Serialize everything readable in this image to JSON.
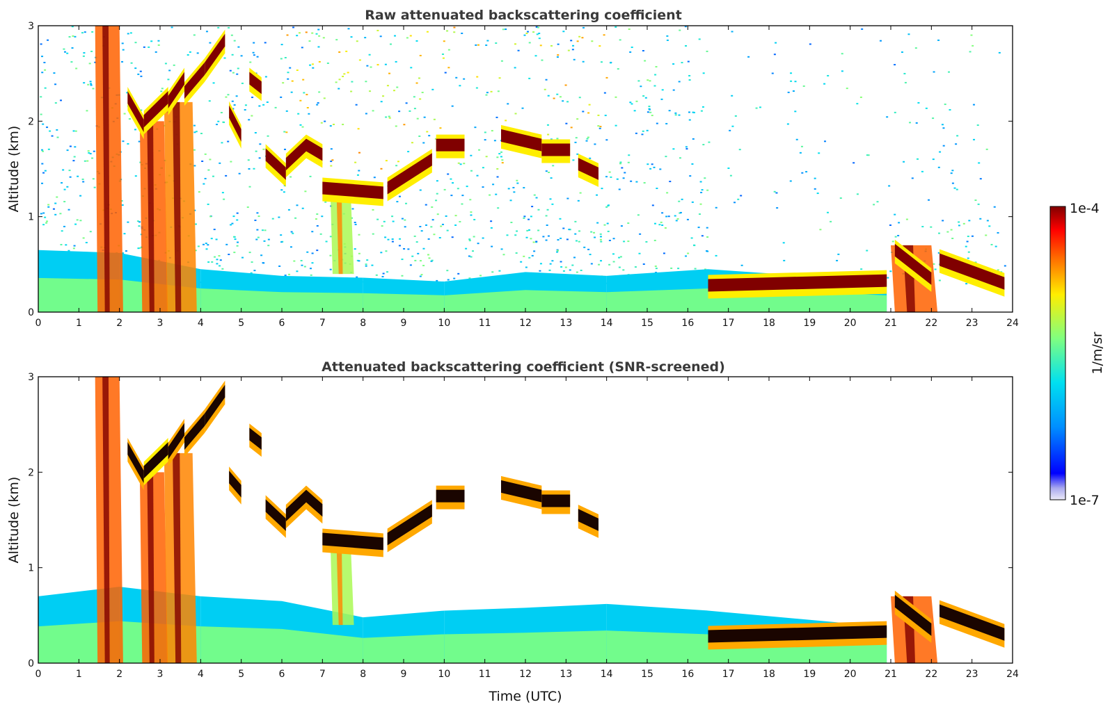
{
  "chart_data": [
    {
      "type": "heatmap",
      "title": "Raw attenuated backscattering coefficient",
      "xlabel": "",
      "ylabel": "Altitude (km)",
      "xlim": [
        0,
        24
      ],
      "ylim": [
        0,
        3
      ],
      "xticks": [
        "0",
        "1",
        "2",
        "3",
        "4",
        "5",
        "6",
        "7",
        "8",
        "9",
        "10",
        "11",
        "12",
        "13",
        "14",
        "15",
        "16",
        "17",
        "18",
        "19",
        "20",
        "21",
        "22",
        "23",
        "24"
      ],
      "yticks": [
        "0",
        "1",
        "2",
        "3"
      ],
      "background_noise": true,
      "boundary_layer": [
        {
          "t": 0,
          "top": 0.65
        },
        {
          "t": 2,
          "top": 0.62
        },
        {
          "t": 4,
          "top": 0.45
        },
        {
          "t": 6,
          "top": 0.38
        },
        {
          "t": 8,
          "top": 0.36
        },
        {
          "t": 10,
          "top": 0.32
        },
        {
          "t": 12,
          "top": 0.42
        },
        {
          "t": 14,
          "top": 0.38
        },
        {
          "t": 16.5,
          "top": 0.45
        },
        {
          "t": 20.9,
          "top": 0.32
        }
      ],
      "cloud_layers": [
        {
          "t": [
            2.2,
            2.6
          ],
          "alt": [
            2.25,
            1.95
          ],
          "log10": -4.0
        },
        {
          "t": [
            2.6,
            3.2
          ],
          "alt": [
            2.0,
            2.25
          ],
          "log10": -4.0
        },
        {
          "t": [
            3.2,
            3.6
          ],
          "alt": [
            2.2,
            2.45
          ],
          "log10": -4.0
        },
        {
          "t": [
            3.6,
            4.1
          ],
          "alt": [
            2.3,
            2.55
          ],
          "log10": -4.0
        },
        {
          "t": [
            4.1,
            4.6
          ],
          "alt": [
            2.55,
            2.85
          ],
          "log10": -4.0
        },
        {
          "t": [
            4.7,
            5.0
          ],
          "alt": [
            2.1,
            1.85
          ],
          "log10": -4.0
        },
        {
          "t": [
            5.2,
            5.5
          ],
          "alt": [
            2.45,
            2.35
          ],
          "log10": -4.0
        },
        {
          "t": [
            5.6,
            6.1
          ],
          "alt": [
            1.65,
            1.45
          ],
          "log10": -4.0
        },
        {
          "t": [
            6.1,
            6.6
          ],
          "alt": [
            1.55,
            1.75
          ],
          "log10": -4.0
        },
        {
          "t": [
            6.6,
            7.0
          ],
          "alt": [
            1.75,
            1.65
          ],
          "log10": -4.0
        },
        {
          "t": [
            7.0,
            8.5
          ],
          "alt": [
            1.3,
            1.25
          ],
          "log10": -4.0
        },
        {
          "t": [
            8.6,
            9.7
          ],
          "alt": [
            1.3,
            1.6
          ],
          "log10": -4.0
        },
        {
          "t": [
            9.8,
            10.5
          ],
          "alt": [
            1.75,
            1.75
          ],
          "log10": -4.0
        },
        {
          "t": [
            11.4,
            12.4
          ],
          "alt": [
            1.85,
            1.75
          ],
          "log10": -4.0
        },
        {
          "t": [
            12.4,
            13.1
          ],
          "alt": [
            1.7,
            1.7
          ],
          "log10": -4.0
        },
        {
          "t": [
            13.3,
            13.8
          ],
          "alt": [
            1.55,
            1.45
          ],
          "log10": -4.0
        },
        {
          "t": [
            16.5,
            20.9
          ],
          "alt": [
            0.28,
            0.33
          ],
          "log10": -4.0
        },
        {
          "t": [
            21.1,
            22.0
          ],
          "alt": [
            0.65,
            0.35
          ],
          "log10": -4.0
        },
        {
          "t": [
            22.2,
            23.8
          ],
          "alt": [
            0.55,
            0.3
          ],
          "log10": -4.0
        }
      ],
      "precipitation_streaks": [
        {
          "t": [
            1.4,
            2.0
          ],
          "alt": [
            3.0,
            0.0
          ],
          "log10": -4.5
        },
        {
          "t": [
            2.5,
            3.1
          ],
          "alt": [
            2.0,
            0.0
          ],
          "log10": -4.5
        },
        {
          "t": [
            3.1,
            3.8
          ],
          "alt": [
            2.2,
            0.0
          ],
          "log10": -4.6
        },
        {
          "t": [
            7.2,
            7.7
          ],
          "alt": [
            1.2,
            0.4
          ],
          "log10": -5.2
        },
        {
          "t": [
            21.0,
            22.0
          ],
          "alt": [
            0.7,
            0.0
          ],
          "log10": -4.5
        }
      ]
    },
    {
      "type": "heatmap",
      "title": "Attenuated backscattering coefficient (SNR-screened)",
      "xlabel": "Time (UTC)",
      "ylabel": "Altitude (km)",
      "xlim": [
        0,
        24
      ],
      "ylim": [
        0,
        3
      ],
      "xticks": [
        "0",
        "1",
        "2",
        "3",
        "4",
        "5",
        "6",
        "7",
        "8",
        "9",
        "10",
        "11",
        "12",
        "13",
        "14",
        "15",
        "16",
        "17",
        "18",
        "19",
        "20",
        "21",
        "22",
        "23",
        "24"
      ],
      "yticks": [
        "0",
        "1",
        "2",
        "3"
      ],
      "background_noise": false,
      "boundary_layer": [
        {
          "t": 0,
          "top": 0.7
        },
        {
          "t": 2,
          "top": 0.8
        },
        {
          "t": 4,
          "top": 0.7
        },
        {
          "t": 6,
          "top": 0.65
        },
        {
          "t": 8,
          "top": 0.48
        },
        {
          "t": 10,
          "top": 0.55
        },
        {
          "t": 12,
          "top": 0.58
        },
        {
          "t": 14,
          "top": 0.62
        },
        {
          "t": 16.5,
          "top": 0.55
        },
        {
          "t": 20.9,
          "top": 0.38
        }
      ],
      "cloud_layers": [
        {
          "t": [
            2.2,
            2.6
          ],
          "alt": [
            2.25,
            1.95
          ],
          "log10": -3.8
        },
        {
          "t": [
            2.6,
            3.2
          ],
          "alt": [
            2.0,
            2.25
          ],
          "log10": -4.0
        },
        {
          "t": [
            3.2,
            3.6
          ],
          "alt": [
            2.2,
            2.45
          ],
          "log10": -3.8
        },
        {
          "t": [
            3.6,
            4.1
          ],
          "alt": [
            2.3,
            2.55
          ],
          "log10": -3.8
        },
        {
          "t": [
            4.1,
            4.6
          ],
          "alt": [
            2.55,
            2.85
          ],
          "log10": -3.8
        },
        {
          "t": [
            4.7,
            5.0
          ],
          "alt": [
            1.95,
            1.8
          ],
          "log10": -3.8
        },
        {
          "t": [
            5.2,
            5.5
          ],
          "alt": [
            2.4,
            2.3
          ],
          "log10": -3.8
        },
        {
          "t": [
            5.6,
            6.1
          ],
          "alt": [
            1.65,
            1.45
          ],
          "log10": -3.8
        },
        {
          "t": [
            6.1,
            6.6
          ],
          "alt": [
            1.55,
            1.75
          ],
          "log10": -3.8
        },
        {
          "t": [
            6.6,
            7.0
          ],
          "alt": [
            1.75,
            1.6
          ],
          "log10": -3.8
        },
        {
          "t": [
            7.0,
            8.5
          ],
          "alt": [
            1.3,
            1.25
          ],
          "log10": -3.8
        },
        {
          "t": [
            8.6,
            9.7
          ],
          "alt": [
            1.3,
            1.6
          ],
          "log10": -3.8
        },
        {
          "t": [
            9.8,
            10.5
          ],
          "alt": [
            1.75,
            1.75
          ],
          "log10": -3.8
        },
        {
          "t": [
            11.4,
            12.4
          ],
          "alt": [
            1.85,
            1.75
          ],
          "log10": -3.8
        },
        {
          "t": [
            12.4,
            13.1
          ],
          "alt": [
            1.7,
            1.7
          ],
          "log10": -3.8
        },
        {
          "t": [
            13.3,
            13.8
          ],
          "alt": [
            1.55,
            1.45
          ],
          "log10": -3.8
        },
        {
          "t": [
            16.5,
            20.9
          ],
          "alt": [
            0.28,
            0.33
          ],
          "log10": -3.8
        },
        {
          "t": [
            21.1,
            22.0
          ],
          "alt": [
            0.65,
            0.35
          ],
          "log10": -3.8
        },
        {
          "t": [
            22.2,
            23.8
          ],
          "alt": [
            0.55,
            0.3
          ],
          "log10": -3.8
        }
      ],
      "precipitation_streaks": [
        {
          "t": [
            1.4,
            2.0
          ],
          "alt": [
            3.0,
            0.0
          ],
          "log10": -4.5
        },
        {
          "t": [
            2.5,
            3.1
          ],
          "alt": [
            2.0,
            0.0
          ],
          "log10": -4.5
        },
        {
          "t": [
            3.1,
            3.8
          ],
          "alt": [
            2.2,
            0.0
          ],
          "log10": -4.6
        },
        {
          "t": [
            7.2,
            7.7
          ],
          "alt": [
            1.2,
            0.4
          ],
          "log10": -5.2
        },
        {
          "t": [
            21.0,
            22.0
          ],
          "alt": [
            0.7,
            0.0
          ],
          "log10": -4.5
        }
      ]
    }
  ],
  "colorbar": {
    "label": "1/m/sr",
    "max_label": "1e-4",
    "min_label": "1e-7",
    "scale": "log",
    "range": [
      1e-07,
      0.0001
    ],
    "colormap": [
      "#e8e8f8",
      "#0000ff",
      "#00a0ff",
      "#00e8e8",
      "#80ff80",
      "#ffff00",
      "#ff8000",
      "#ff0000",
      "#800000"
    ]
  }
}
